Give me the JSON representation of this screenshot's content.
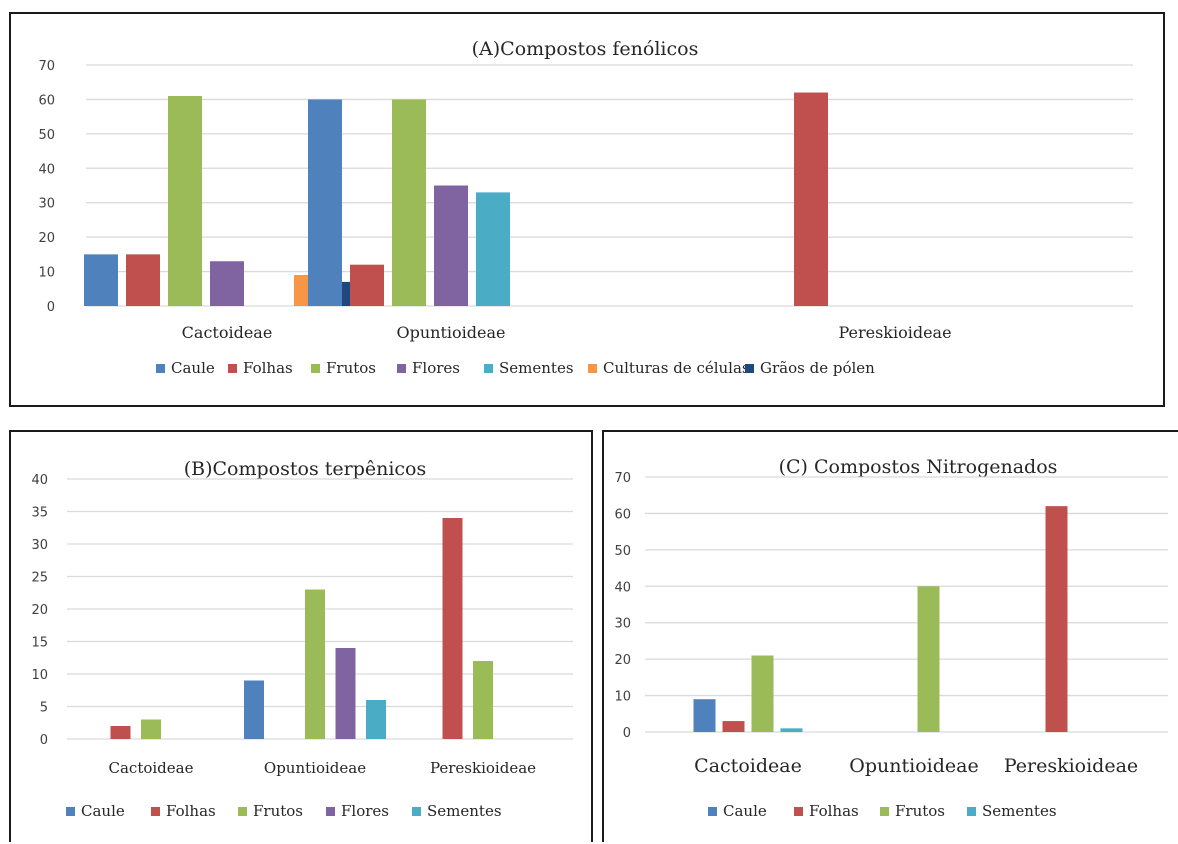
{
  "chart_data": [
    {
      "type": "bar",
      "title": "(A)Compostos fenólicos",
      "categories": [
        "Cactoideae",
        "Opuntioideae",
        "Pereskioideae"
      ],
      "ylim": [
        0,
        70
      ],
      "yticks": [
        0,
        10,
        20,
        30,
        40,
        50,
        60,
        70
      ],
      "grid": true,
      "legend_position": "bottom",
      "series": [
        {
          "name": "Caule",
          "color": "#4f81bd",
          "values": [
            15,
            60,
            null
          ]
        },
        {
          "name": "Folhas",
          "color": "#c0504d",
          "values": [
            15,
            12,
            62
          ]
        },
        {
          "name": "Frutos",
          "color": "#9bbb59",
          "values": [
            61,
            60,
            null
          ]
        },
        {
          "name": "Flores",
          "color": "#8064a2",
          "values": [
            13,
            35,
            null
          ]
        },
        {
          "name": "Sementes",
          "color": "#4bacc6",
          "values": [
            null,
            33,
            null
          ]
        },
        {
          "name": "Culturas de células",
          "color": "#f79646",
          "values": [
            9,
            null,
            null
          ]
        },
        {
          "name": "Grãos de pólen",
          "color": "#1f497d",
          "values": [
            7,
            null,
            null
          ]
        }
      ]
    },
    {
      "type": "bar",
      "title": "(B)Compostos terpênicos",
      "categories": [
        "Cactoideae",
        "Opuntioideae",
        "Pereskioideae"
      ],
      "ylim": [
        0,
        40
      ],
      "yticks": [
        0,
        5,
        10,
        15,
        20,
        25,
        30,
        35,
        40
      ],
      "grid": true,
      "legend_position": "bottom",
      "series": [
        {
          "name": "Caule",
          "color": "#4f81bd",
          "values": [
            null,
            9,
            null
          ]
        },
        {
          "name": "Folhas",
          "color": "#c0504d",
          "values": [
            2,
            null,
            34
          ]
        },
        {
          "name": "Frutos",
          "color": "#9bbb59",
          "values": [
            3,
            23,
            12
          ]
        },
        {
          "name": "Flores",
          "color": "#8064a2",
          "values": [
            null,
            14,
            null
          ]
        },
        {
          "name": "Sementes",
          "color": "#4bacc6",
          "values": [
            null,
            6,
            null
          ]
        }
      ]
    },
    {
      "type": "bar",
      "title": "(C) Compostos Nitrogenados",
      "categories": [
        "Cactoideae",
        "Opuntioideae",
        "Pereskioideae"
      ],
      "ylim": [
        0,
        70
      ],
      "yticks": [
        0,
        10,
        20,
        30,
        40,
        50,
        60,
        70
      ],
      "grid": true,
      "legend_position": "bottom",
      "series": [
        {
          "name": "Caule",
          "color": "#4f81bd",
          "values": [
            9,
            null,
            null
          ]
        },
        {
          "name": "Folhas",
          "color": "#c0504d",
          "values": [
            3,
            null,
            62
          ]
        },
        {
          "name": "Frutos",
          "color": "#9bbb59",
          "values": [
            21,
            40,
            null
          ]
        },
        {
          "name": "Sementes",
          "color": "#4bacc6",
          "values": [
            1,
            null,
            null
          ]
        }
      ]
    }
  ]
}
